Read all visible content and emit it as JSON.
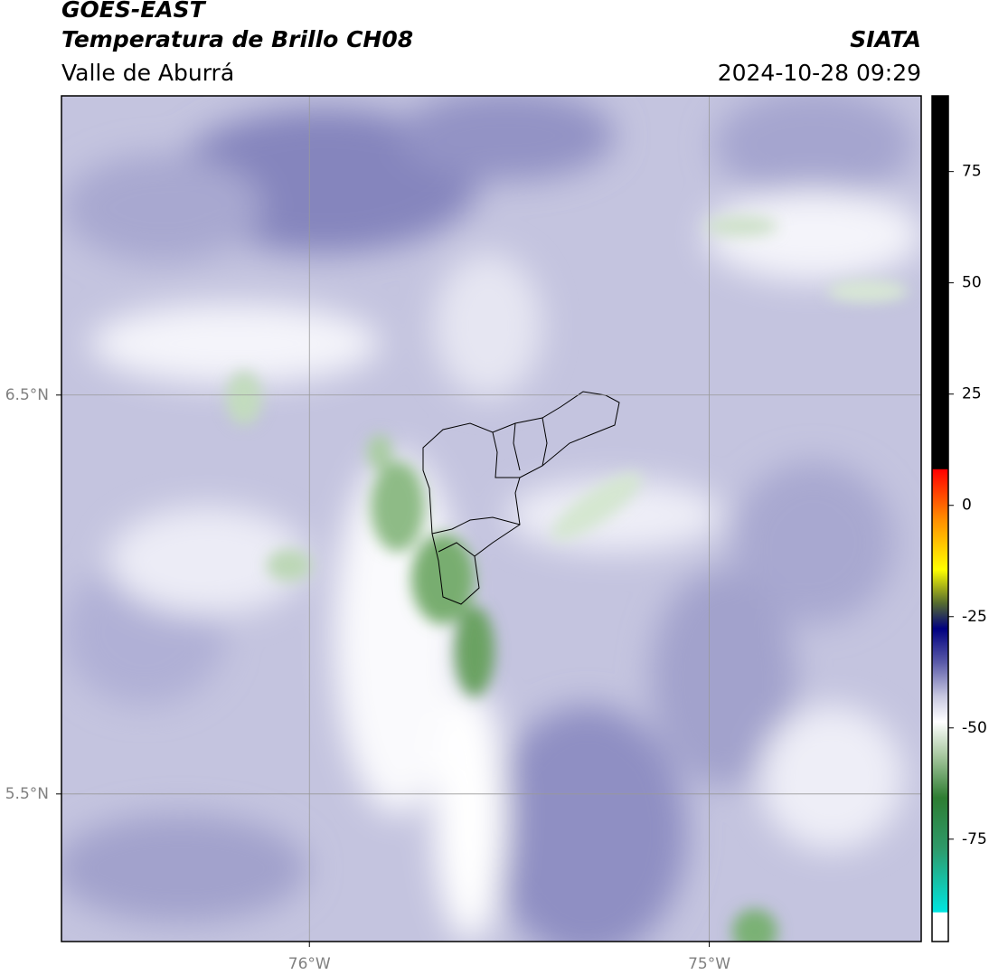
{
  "header": {
    "satellite": "GOES-EAST",
    "product": "Temperatura de Brillo CH08",
    "region": "Valle de Aburrá",
    "source": "SIATA",
    "timestamp": "2024-10-28 09:29"
  },
  "map": {
    "lon_range": [
      -76.62,
      -74.47
    ],
    "lat_range": [
      5.13,
      7.25
    ],
    "lat_ticks": [
      {
        "value": 6.5,
        "label": "6.5°N"
      },
      {
        "value": 5.5,
        "label": "5.5°N"
      }
    ],
    "lon_ticks": [
      {
        "value": -76,
        "label": "76°W"
      },
      {
        "value": -75,
        "label": "75°W"
      }
    ],
    "grid": true
  },
  "colorbar": {
    "range": [
      -98,
      92
    ],
    "ticks": [
      75,
      50,
      25,
      0,
      -25,
      -50,
      -75
    ]
  }
}
